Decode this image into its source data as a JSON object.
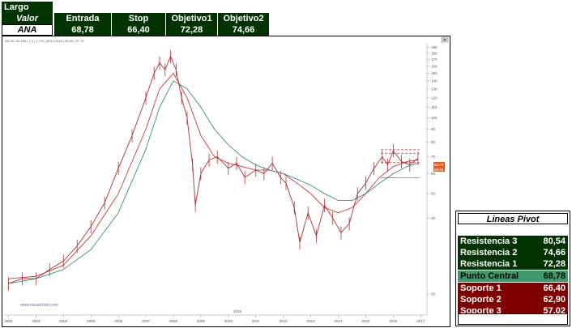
{
  "header": {
    "title": "Largo",
    "row1": {
      "label": "Valor",
      "cols": [
        "Entrada",
        "Stop",
        "Objetivo1",
        "Objetivo2"
      ]
    },
    "row2": {
      "label": "ANA",
      "values": [
        "68,78",
        "66,40",
        "72,28",
        "74,66"
      ]
    }
  },
  "chart_info": {
    "status_text": "AN.3C: 62,190 | 7,1 | 1,7% | 29/12-2016 | 69,00 | 57,76",
    "watermark": "www.visualchart.com",
    "year_label": "2016",
    "price_tags": [
      "68,78",
      "68,04"
    ]
  },
  "chart_data": {
    "type": "line",
    "title": "",
    "xlabel": "",
    "ylabel": "",
    "x_ticks": [
      "2002",
      "2003",
      "2004",
      "2005",
      "2006",
      "2007",
      "2008",
      "2009",
      "2010",
      "2011",
      "2012",
      "2013",
      "2014",
      "2015",
      "2016",
      "2017"
    ],
    "y_ticks": [
      20,
      40,
      50,
      60,
      70,
      80,
      90,
      100,
      110,
      120,
      130,
      140,
      150,
      160,
      170,
      180,
      190
    ],
    "ylim": [
      17,
      195
    ],
    "log_scale": true,
    "series": [
      {
        "type": "ohlc",
        "color": "#b03030",
        "x": [
          2002.0,
          2002.5,
          2003.0,
          2003.5,
          2004.0,
          2004.5,
          2005.0,
          2005.5,
          2006.0,
          2006.5,
          2007.0,
          2007.3,
          2007.5,
          2007.7,
          2007.9,
          2008.1,
          2008.3,
          2008.5,
          2008.7,
          2008.8,
          2009.0,
          2009.3,
          2009.6,
          2010.0,
          2010.3,
          2010.6,
          2011.0,
          2011.3,
          2011.6,
          2011.9,
          2012.1,
          2012.4,
          2012.6,
          2012.9,
          2013.2,
          2013.5,
          2013.8,
          2014.1,
          2014.4,
          2014.7,
          2015.0,
          2015.3,
          2015.6,
          2015.8,
          2016.0,
          2016.3,
          2016.6,
          2016.9
        ],
        "y": [
          22,
          23,
          23,
          25,
          27,
          31,
          37,
          46,
          63,
          85,
          120,
          150,
          165,
          155,
          175,
          155,
          120,
          100,
          65,
          45,
          60,
          68,
          70,
          63,
          66,
          58,
          62,
          60,
          66,
          58,
          55,
          44,
          32,
          42,
          34,
          45,
          40,
          35,
          38,
          50,
          55,
          63,
          70,
          65,
          74,
          67,
          65,
          69
        ]
      },
      {
        "name": "",
        "color": "#d02020",
        "x": [
          2002,
          2003,
          2004,
          2005,
          2006,
          2007,
          2007.5,
          2008,
          2008.5,
          2009,
          2009.5,
          2010,
          2010.5,
          2011,
          2011.5,
          2012,
          2012.5,
          2013,
          2013.5,
          2014,
          2014.5,
          2015,
          2015.5,
          2016,
          2016.5,
          2016.9
        ],
        "y": [
          23,
          23.5,
          26,
          34,
          50,
          90,
          130,
          150,
          120,
          85,
          70,
          66,
          64,
          62,
          62,
          60,
          55,
          50,
          44,
          42,
          44,
          50,
          58,
          64,
          67,
          68
        ]
      },
      {
        "name": "",
        "color": "#208080",
        "x": [
          2002,
          2003,
          2004,
          2005,
          2006,
          2007,
          2007.5,
          2008,
          2008.5,
          2009,
          2009.5,
          2010,
          2010.5,
          2011,
          2011.5,
          2012,
          2012.5,
          2013,
          2013.5,
          2014,
          2014.5,
          2015,
          2015.5,
          2016,
          2016.5,
          2016.9
        ],
        "y": [
          22,
          23,
          25,
          30,
          42,
          75,
          110,
          140,
          130,
          110,
          90,
          78,
          70,
          65,
          62,
          60,
          57,
          54,
          50,
          47,
          47,
          50,
          55,
          60,
          64,
          66
        ]
      }
    ],
    "levels": [
      {
        "value": 74.66,
        "color": "#d02020",
        "style": "dashed"
      },
      {
        "value": 72.28,
        "color": "#d02020",
        "style": "dashed"
      },
      {
        "value": 66.4,
        "color": "#d02020",
        "style": "dashed"
      },
      {
        "value": 57.76,
        "color": "#208080",
        "style": "solid"
      }
    ],
    "grid": false,
    "legend": "none"
  },
  "pivot": {
    "title": "Lineas Pivot",
    "rows": [
      {
        "label": "Resistencia 3",
        "value": "80,54",
        "kind": "g"
      },
      {
        "label": "Resistencia 2",
        "value": "74,66",
        "kind": "g"
      },
      {
        "label": "Resistencia 1",
        "value": "72,28",
        "kind": "g"
      },
      {
        "label": "Punto Central",
        "value": "68,78",
        "kind": "m"
      },
      {
        "label": "Soporte 1",
        "value": "66,40",
        "kind": "r"
      },
      {
        "label": "Soporte 2",
        "value": "62,90",
        "kind": "r"
      },
      {
        "label": "Soporte 3",
        "value": "57,02",
        "kind": "r"
      }
    ]
  },
  "colors": {
    "dark_green": "#003300",
    "mid_green": "#3a9a6b",
    "dark_red": "#800000",
    "price": "#b03030",
    "ma_red": "#d02020",
    "ma_teal": "#208080"
  }
}
